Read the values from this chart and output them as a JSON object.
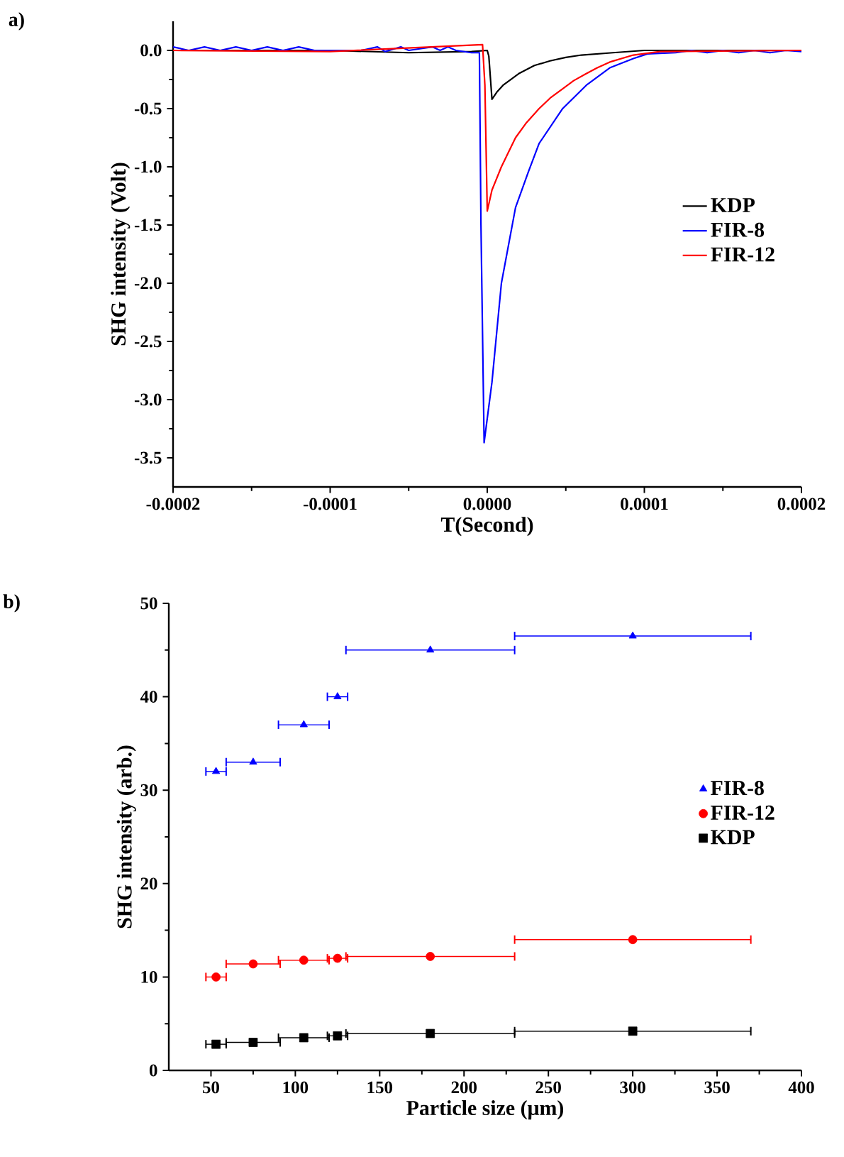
{
  "chart_data": [
    {
      "type": "line",
      "annotations": [
        "a)"
      ],
      "xlabel": "T(Second)",
      "ylabel": "SHG intensity (Volt)",
      "xlim": [
        -0.0002,
        0.0002
      ],
      "ylim": [
        -3.75,
        0.25
      ],
      "xticks": [
        {
          "value": -0.0002,
          "label": "-0.0002"
        },
        {
          "value": -0.0001,
          "label": "-0.0001"
        },
        {
          "value": 0,
          "label": "0.0000"
        },
        {
          "value": 0.0001,
          "label": "0.0001"
        },
        {
          "value": 0.0002,
          "label": "0.0002"
        }
      ],
      "yticks": [
        {
          "value": 0,
          "label": "0.0"
        },
        {
          "value": -0.5,
          "label": "-0.5"
        },
        {
          "value": -1,
          "label": "-1.0"
        },
        {
          "value": -1.5,
          "label": "-1.5"
        },
        {
          "value": -2,
          "label": "-2.0"
        },
        {
          "value": -2.5,
          "label": "-2.5"
        },
        {
          "value": -3,
          "label": "-3.0"
        },
        {
          "value": -3.5,
          "label": "-3.5"
        }
      ],
      "legend": "right",
      "series": [
        {
          "name": "KDP",
          "color": "#000000",
          "x": [
            -0.0002,
            -0.0001,
            -5e-05,
            -1e-05,
            0,
            1e-06,
            3e-06,
            6e-06,
            1e-05,
            2e-05,
            3e-05,
            4e-05,
            5e-05,
            6e-05,
            8e-05,
            0.0001,
            0.0002
          ],
          "values": [
            0,
            0,
            -0.02,
            -0.01,
            0,
            -0.05,
            -0.42,
            -0.36,
            -0.3,
            -0.2,
            -0.13,
            -0.09,
            -0.06,
            -0.04,
            -0.02,
            0,
            0
          ]
        },
        {
          "name": "FIR-8",
          "color": "#0000ff",
          "x": [
            -0.0002,
            -0.00019,
            -0.00018,
            -0.00017,
            -0.00016,
            -0.00015,
            -0.00014,
            -0.00013,
            -0.00012,
            -0.00011,
            -8e-05,
            -7e-05,
            -6.5e-05,
            -5.5e-05,
            -5e-05,
            -3.5e-05,
            -3e-05,
            -2.5e-05,
            -2e-05,
            -1e-05,
            -5e-06,
            -4e-06,
            -2e-06,
            3e-06,
            9e-06,
            1.8e-05,
            2.6e-05,
            3.3e-05,
            4.8e-05,
            6.3e-05,
            7.8e-05,
            9.3e-05,
            0.000102,
            0.00012,
            0.00013,
            0.00014,
            0.00015,
            0.00016,
            0.00017,
            0.00018,
            0.00019,
            0.0002
          ],
          "values": [
            0.03,
            0,
            0.03,
            0,
            0.03,
            0,
            0.03,
            0,
            0.03,
            0,
            0,
            0.03,
            -0.01,
            0.03,
            0,
            0.03,
            0,
            0.03,
            0,
            -0.02,
            -0.02,
            -1.5,
            -3.37,
            -2.85,
            -2.0,
            -1.35,
            -1.05,
            -0.8,
            -0.5,
            -0.3,
            -0.15,
            -0.07,
            -0.03,
            -0.02,
            0,
            -0.02,
            0,
            -0.02,
            0,
            -0.02,
            0,
            -0.01
          ]
        },
        {
          "name": "FIR-12",
          "color": "#ff0000",
          "x": [
            -0.0002,
            -0.0001,
            -3e-06,
            -1.5e-06,
            0,
            3e-06,
            9e-06,
            1.8e-05,
            2.5e-05,
            3.3e-05,
            4e-05,
            4.8e-05,
            5.5e-05,
            6.3e-05,
            7e-05,
            7.8e-05,
            9.3e-05,
            0.00011,
            0.0002
          ],
          "values": [
            0,
            -0.01,
            0.05,
            -0.3,
            -1.38,
            -1.2,
            -1.0,
            -0.75,
            -0.62,
            -0.5,
            -0.41,
            -0.33,
            -0.26,
            -0.2,
            -0.15,
            -0.1,
            -0.04,
            -0.01,
            0
          ]
        }
      ]
    },
    {
      "type": "scatter",
      "annotations": [
        "b)"
      ],
      "xlabel": "Particle size (μm)",
      "ylabel": "SHG intensity (arb.)",
      "xlim": [
        25,
        400
      ],
      "ylim": [
        0,
        50
      ],
      "xticks": [
        50,
        100,
        150,
        200,
        250,
        300,
        350,
        400
      ],
      "yticks": [
        0,
        10,
        20,
        30,
        40,
        50
      ],
      "legend": "right",
      "series": [
        {
          "name": "FIR-8",
          "color": "#0000ff",
          "marker": "triangle",
          "x": [
            53,
            75,
            105,
            125,
            180,
            300
          ],
          "values": [
            32,
            33,
            37,
            40,
            45,
            46.5
          ],
          "xerrors": [
            6,
            16,
            15,
            6,
            50,
            70
          ]
        },
        {
          "name": "FIR-12",
          "color": "#ff0000",
          "marker": "circle",
          "x": [
            53,
            75,
            105,
            125,
            180,
            300
          ],
          "values": [
            10,
            11.4,
            11.8,
            12,
            12.2,
            14
          ],
          "xerrors": [
            6,
            16,
            15,
            6,
            50,
            70
          ]
        },
        {
          "name": "KDP",
          "color": "#000000",
          "marker": "square",
          "x": [
            53,
            75,
            105,
            125,
            180,
            300
          ],
          "values": [
            2.8,
            3.0,
            3.5,
            3.7,
            3.95,
            4.2
          ],
          "xerrors": [
            6,
            16,
            15,
            6,
            50,
            70
          ]
        }
      ]
    }
  ]
}
